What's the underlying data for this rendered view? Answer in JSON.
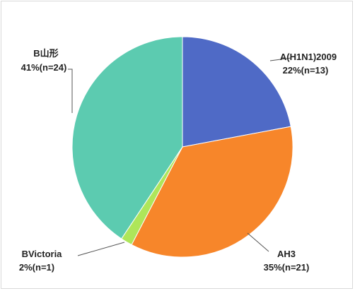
{
  "chart_data": {
    "type": "pie",
    "title": "",
    "slices": [
      {
        "label": "A(H1N1)2009",
        "pct_text": "22%(n=13)",
        "value": 13,
        "color": "#4f6ac6"
      },
      {
        "label": "AH3",
        "pct_text": "35%(n=21)",
        "value": 21,
        "color": "#f7862a"
      },
      {
        "label": "BVictoria",
        "pct_text": "2%(n=1)",
        "value": 1,
        "color": "#aee65a"
      },
      {
        "label": "B山形",
        "pct_text": "41%(n=24)",
        "value": 24,
        "color": "#5ccbb0"
      }
    ],
    "start_angle_deg": 0,
    "direction": "clockwise",
    "legend": "none"
  }
}
